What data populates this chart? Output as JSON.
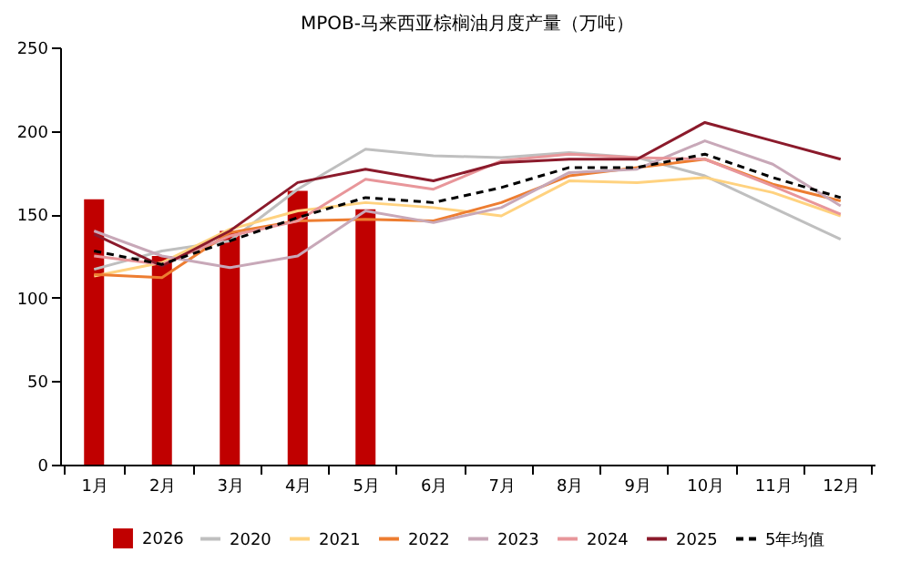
{
  "chart_data": {
    "type": "bar",
    "title": "MPOB-马来西亚棕榈油月度产量（万吨）",
    "categories": [
      "1月",
      "2月",
      "3月",
      "4月",
      "5月",
      "6月",
      "7月",
      "8月",
      "9月",
      "10月",
      "11月",
      "12月"
    ],
    "ylim": [
      0,
      250
    ],
    "yticks": [
      0,
      50,
      100,
      150,
      200,
      250
    ],
    "grid": false,
    "legend": "bottom",
    "series": [
      {
        "name": "2026",
        "color": "#c00000",
        "values": [
          159,
          125,
          140,
          164,
          153,
          null,
          null,
          null,
          null,
          null,
          null,
          null
        ]
      },
      {
        "name": "2020",
        "type": "line",
        "color": "#bfbfbf",
        "values": [
          117,
          128,
          134,
          165,
          189,
          185,
          184,
          187,
          184,
          173,
          154,
          135
        ]
      },
      {
        "name": "2021",
        "type": "line",
        "color": "#ffd27f",
        "values": [
          113,
          121,
          141,
          152,
          157,
          154,
          149,
          170,
          169,
          172,
          163,
          149
        ]
      },
      {
        "name": "2022",
        "type": "line",
        "color": "#ed7d31",
        "values": [
          114,
          112,
          139,
          146,
          147,
          146,
          157,
          173,
          178,
          183,
          168,
          158
        ]
      },
      {
        "name": "2023",
        "type": "line",
        "color": "#c8a8b8",
        "values": [
          140,
          125,
          118,
          125,
          152,
          145,
          154,
          175,
          177,
          194,
          180,
          155
        ]
      },
      {
        "name": "2024",
        "type": "line",
        "color": "#e8969a",
        "values": [
          125,
          120,
          137,
          146,
          171,
          165,
          182,
          186,
          184,
          183,
          167,
          150
        ]
      },
      {
        "name": "2025",
        "type": "line",
        "color": "#8b1a2b",
        "values": [
          138,
          119,
          140,
          169,
          177,
          170,
          181,
          183,
          183,
          205,
          194,
          183
        ]
      },
      {
        "name": "5年均值",
        "type": "line",
        "color": "#000000",
        "line_style": "dashed",
        "values": [
          128,
          120,
          134,
          148,
          160,
          157,
          166,
          178,
          178,
          186,
          172,
          160
        ]
      }
    ]
  }
}
